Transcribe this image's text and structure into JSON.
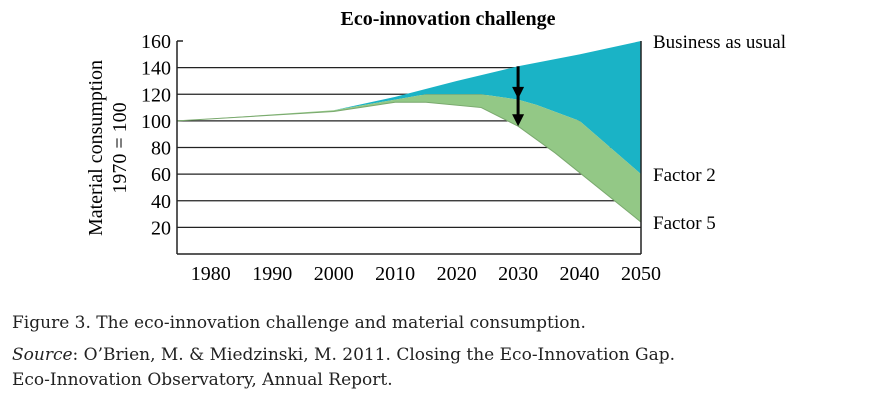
{
  "chart_data": {
    "type": "area",
    "title": "Eco-innovation challenge",
    "ylabel_lines": [
      "Material consumption",
      "1970 = 100"
    ],
    "xlabel": "",
    "xlim": [
      1974.5,
      2050
    ],
    "ylim": [
      0,
      160
    ],
    "x_ticks": [
      1980,
      1990,
      2000,
      2010,
      2020,
      2030,
      2040,
      2050
    ],
    "y_ticks": [
      20,
      40,
      60,
      80,
      100,
      120,
      140,
      160
    ],
    "grid": "horizontal",
    "series": [
      {
        "name": "Business as usual",
        "color": "#1ab3c6",
        "x": [
          1974.5,
          2000,
          2010,
          2020,
          2030,
          2040,
          2050
        ],
        "y": [
          100,
          108,
          118,
          130,
          141,
          150,
          160
        ]
      },
      {
        "name": "Factor 2",
        "color": "#93c886",
        "x": [
          1974.5,
          2000,
          2010,
          2015,
          2024,
          2030,
          2033,
          2040,
          2050
        ],
        "y": [
          100,
          108,
          116,
          120,
          120,
          116,
          112,
          100,
          60
        ]
      },
      {
        "name": "Factor 5",
        "x": [
          1974.5,
          2000,
          2010,
          2015,
          2024,
          2030,
          2036,
          2050
        ],
        "y": [
          100,
          107,
          114,
          114,
          110,
          96,
          76,
          24
        ]
      }
    ],
    "annotations": [
      {
        "type": "arrow",
        "x": 2030,
        "from": 141,
        "to": 96
      }
    ]
  },
  "caption": {
    "figure": "Figure 3. The eco-innovation challenge and material consumption.",
    "source_label": "Source",
    "source_text": ": O’Brien, M. & Miedzinski, M. 2011. Closing the Eco-Innovation Gap.",
    "source_line2": "Eco-Innovation Observatory, Annual Report."
  }
}
